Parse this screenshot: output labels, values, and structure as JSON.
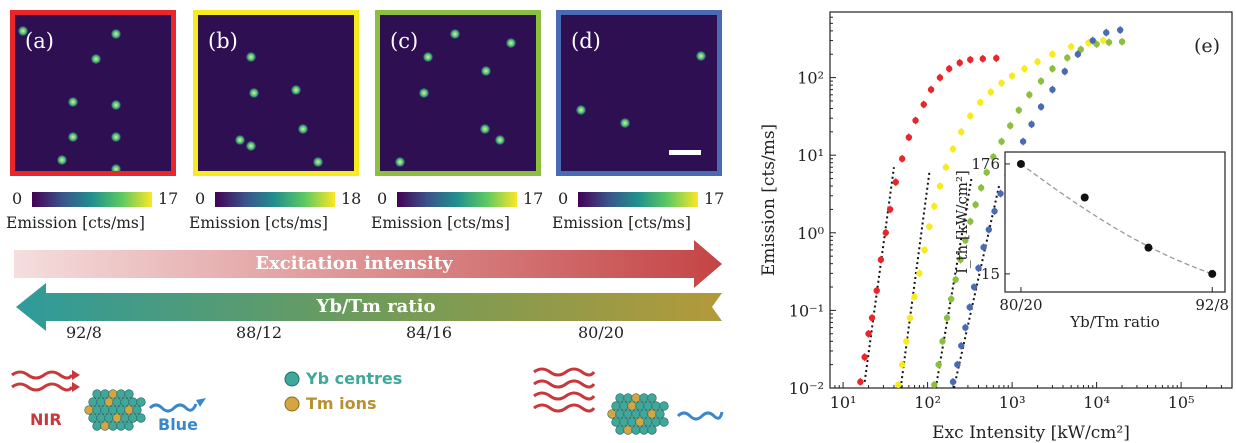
{
  "panels": [
    {
      "label": "(a)",
      "border_color": "#e8262b",
      "cb_min": "0",
      "cb_max": "17"
    },
    {
      "label": "(b)",
      "border_color": "#f7ea1f",
      "cb_min": "0",
      "cb_max": "18"
    },
    {
      "label": "(c)",
      "border_color": "#8cbf3f",
      "cb_min": "0",
      "cb_max": "17"
    },
    {
      "label": "(d)",
      "border_color": "#4a6ab3",
      "cb_min": "0",
      "cb_max": "17"
    }
  ],
  "colorbar_label": "Emission [cts/ms]",
  "arrows": {
    "excitation": "Excitation intensity",
    "ratio": "Yb/Tm ratio"
  },
  "ratio_ticks": [
    "92/8",
    "88/12",
    "84/16",
    "80/20"
  ],
  "illustration": {
    "nir_label": "NIR",
    "blue_label": "Blue",
    "yb_label": "Yb centres",
    "tm_label": "Tm ions",
    "colors": {
      "nir": "#c8383b",
      "blue": "#3a88c8",
      "yb": "#3fa89a",
      "tm": "#d4a640"
    }
  },
  "chart_data": [
    {
      "type": "scatter",
      "panel_label": "(e)",
      "xlabel": "Exc Intensity [kW/cm²]",
      "ylabel": "Emission [cts/ms]",
      "xscale": "log",
      "yscale": "log",
      "xlim": [
        7,
        400000
      ],
      "ylim": [
        0.01,
        700
      ],
      "xticks": [
        {
          "v": 10,
          "t": "10¹"
        },
        {
          "v": 100,
          "t": "10²"
        },
        {
          "v": 1000,
          "t": "10³"
        },
        {
          "v": 10000,
          "t": "10⁴"
        },
        {
          "v": 100000,
          "t": "10⁵"
        }
      ],
      "yticks": [
        {
          "v": 0.01,
          "t": "10⁻²"
        },
        {
          "v": 0.1,
          "t": "10⁻¹"
        },
        {
          "v": 1,
          "t": "10⁰"
        },
        {
          "v": 10,
          "t": "10¹"
        },
        {
          "v": 100,
          "t": "10²"
        }
      ],
      "series": [
        {
          "color": "#e8262b",
          "x": [
            16,
            18,
            20,
            22,
            25,
            28,
            32,
            36,
            42,
            50,
            60,
            72,
            90,
            110,
            140,
            180,
            240,
            320,
            450,
            650
          ],
          "y": [
            0.012,
            0.025,
            0.05,
            0.08,
            0.18,
            0.45,
            1.0,
            2.0,
            4.5,
            9,
            17,
            28,
            45,
            70,
            100,
            130,
            155,
            170,
            175,
            178
          ],
          "fit_x": [
            18,
            40
          ],
          "fit_y": [
            0.012,
            7
          ]
        },
        {
          "color": "#f7ea1f",
          "x": [
            45,
            50,
            56,
            62,
            70,
            80,
            92,
            105,
            120,
            140,
            165,
            200,
            250,
            320,
            420,
            560,
            750,
            1000,
            1400,
            2000,
            3000,
            5000,
            8000,
            12000
          ],
          "y": [
            0.011,
            0.02,
            0.04,
            0.08,
            0.15,
            0.3,
            0.6,
            1.2,
            2.2,
            4.0,
            7,
            12,
            20,
            32,
            48,
            65,
            85,
            105,
            130,
            160,
            200,
            250,
            280,
            300
          ],
          "fit_x": [
            48,
            105
          ],
          "fit_y": [
            0.01,
            6
          ]
        },
        {
          "color": "#8cbf3f",
          "x": [
            120,
            135,
            150,
            170,
            190,
            215,
            245,
            280,
            320,
            370,
            430,
            500,
            600,
            750,
            950,
            1200,
            1600,
            2200,
            3000,
            4500,
            6500,
            10000,
            14000,
            20000
          ],
          "y": [
            0.011,
            0.02,
            0.04,
            0.08,
            0.14,
            0.25,
            0.45,
            0.8,
            1.4,
            2.3,
            3.8,
            6,
            9.5,
            15,
            24,
            38,
            60,
            90,
            130,
            180,
            230,
            270,
            285,
            290
          ],
          "fit_x": [
            125,
            330
          ],
          "fit_y": [
            0.01,
            5
          ]
        },
        {
          "color": "#4a6ab3",
          "x": [
            200,
            225,
            250,
            280,
            315,
            355,
            400,
            460,
            530,
            620,
            730,
            880,
            1080,
            1350,
            1700,
            2200,
            3000,
            4200,
            6000,
            9000,
            13000,
            19000
          ],
          "y": [
            0.012,
            0.02,
            0.035,
            0.06,
            0.11,
            0.2,
            0.35,
            0.65,
            1.1,
            1.9,
            3.2,
            5.5,
            9,
            15,
            25,
            42,
            70,
            120,
            200,
            300,
            380,
            410
          ],
          "fit_x": [
            205,
            700
          ],
          "fit_y": [
            0.01,
            4
          ]
        }
      ]
    },
    {
      "type": "scatter",
      "xlabel": "Yb/Tm ratio",
      "ylabel": "I_th [kW/cm²]",
      "xticks": [
        {
          "v": 0,
          "t": "80/20"
        },
        {
          "v": 3,
          "t": "92/8"
        }
      ],
      "yticks": [
        {
          "v": 15,
          "t": "15"
        },
        {
          "v": 176,
          "t": "176"
        }
      ],
      "xlim": [
        -0.25,
        3.2
      ],
      "ylim": [
        10,
        230
      ],
      "points": [
        {
          "x": 0,
          "y": 176
        },
        {
          "x": 1,
          "y": 83
        },
        {
          "x": 2,
          "y": 27
        },
        {
          "x": 3,
          "y": 15
        }
      ]
    }
  ]
}
